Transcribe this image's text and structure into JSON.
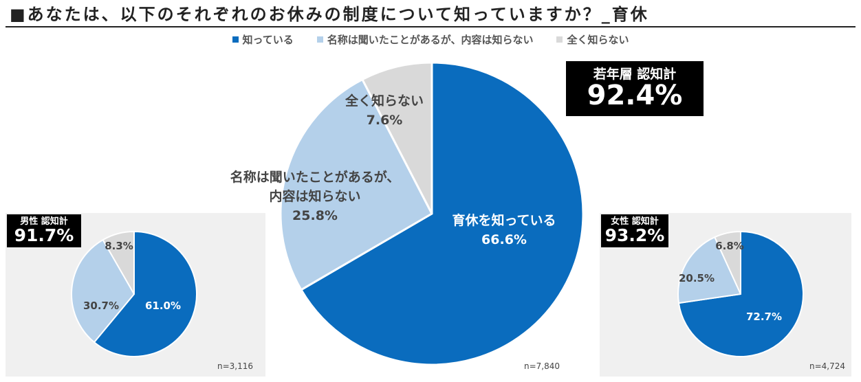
{
  "title": "■あなたは、以下のそれぞれのお休みの制度について知っていますか？_育休",
  "legend": [
    {
      "label": "知っている",
      "color": "#0A6CBE"
    },
    {
      "label": "名称は聞いたことがあるが、内容は知らない",
      "color": "#B4D0EA"
    },
    {
      "label": "全く知らない",
      "color": "#D9D9D9"
    }
  ],
  "badges": {
    "main": {
      "label": "若年層 認知計",
      "value": "92.4%"
    },
    "male": {
      "label": "男性 認知計",
      "value": "91.7%"
    },
    "female": {
      "label": "女性 認知計",
      "value": "93.2%"
    }
  },
  "chart_data": [
    {
      "type": "pie",
      "name": "main",
      "categories": [
        "育休を知っている",
        "名称は聞いたことがあるが、内容は知らない",
        "全く知らない"
      ],
      "values": [
        66.6,
        25.8,
        7.6
      ],
      "value_labels": [
        "66.6%",
        "25.8%",
        "7.6%"
      ],
      "colors": [
        "#0A6CBE",
        "#B4D0EA",
        "#D9D9D9"
      ],
      "n_label": "n=7,840"
    },
    {
      "type": "pie",
      "name": "male",
      "categories": [
        "知っている",
        "名称は聞いたことがあるが、内容は知らない",
        "全く知らない"
      ],
      "values": [
        61.0,
        30.7,
        8.3
      ],
      "value_labels": [
        "61.0%",
        "30.7%",
        "8.3%"
      ],
      "colors": [
        "#0A6CBE",
        "#B4D0EA",
        "#D9D9D9"
      ],
      "n_label": "n=3,116"
    },
    {
      "type": "pie",
      "name": "female",
      "categories": [
        "知っている",
        "名称は聞いたことがあるが、内容は知らない",
        "全く知らない"
      ],
      "values": [
        72.7,
        20.5,
        6.8
      ],
      "value_labels": [
        "72.7%",
        "20.5%",
        "6.8%"
      ],
      "colors": [
        "#0A6CBE",
        "#B4D0EA",
        "#D9D9D9"
      ],
      "n_label": "n=4,724"
    }
  ]
}
